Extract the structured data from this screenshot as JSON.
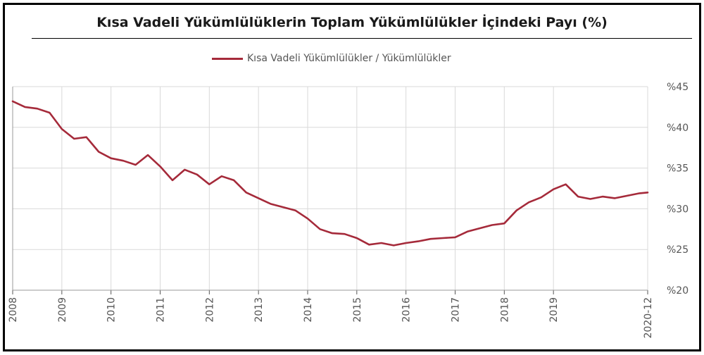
{
  "chart_data": {
    "type": "line",
    "title": "Kısa Vadeli Yükümlülüklerin Toplam Yükümlülükler İçindeki Payı (%)",
    "xlabel": "",
    "ylabel": "",
    "x_tick_labels": [
      "2008",
      "2009",
      "2010",
      "2011",
      "2012",
      "2013",
      "2014",
      "2015",
      "2016",
      "2017",
      "2018",
      "2019",
      "2020-12"
    ],
    "y_tick_labels": [
      "%20",
      "%25",
      "%30",
      "%35",
      "%40",
      "%45"
    ],
    "ylim": [
      20,
      45
    ],
    "xlim": [
      "2008-01",
      "2020-12"
    ],
    "grid": true,
    "legend_position": "top",
    "series": [
      {
        "name": "Kısa Vadeli Yükümlülükler / Yükümlülükler",
        "color": "#a52a3a",
        "x": [
          "2008-01",
          "2008-04",
          "2008-07",
          "2008-10",
          "2009-01",
          "2009-04",
          "2009-07",
          "2009-10",
          "2010-01",
          "2010-04",
          "2010-07",
          "2010-10",
          "2011-01",
          "2011-04",
          "2011-07",
          "2011-10",
          "2012-01",
          "2012-04",
          "2012-07",
          "2012-10",
          "2013-01",
          "2013-04",
          "2013-07",
          "2013-10",
          "2014-01",
          "2014-04",
          "2014-07",
          "2014-10",
          "2015-01",
          "2015-04",
          "2015-07",
          "2015-10",
          "2016-01",
          "2016-04",
          "2016-07",
          "2016-10",
          "2017-01",
          "2017-04",
          "2017-07",
          "2017-10",
          "2018-01",
          "2018-04",
          "2018-07",
          "2018-10",
          "2019-01",
          "2019-04",
          "2019-07",
          "2019-10",
          "2020-01",
          "2020-04",
          "2020-07",
          "2020-10",
          "2020-12"
        ],
        "values": [
          43.2,
          42.5,
          42.3,
          41.8,
          39.8,
          38.6,
          38.8,
          37.0,
          36.2,
          35.9,
          35.4,
          36.6,
          35.2,
          33.5,
          34.8,
          34.2,
          33.0,
          34.0,
          33.5,
          32.0,
          31.3,
          30.6,
          30.2,
          29.8,
          28.8,
          27.5,
          27.0,
          26.9,
          26.4,
          25.6,
          25.8,
          25.5,
          25.8,
          26.0,
          26.3,
          26.4,
          26.5,
          27.2,
          27.6,
          28.0,
          28.2,
          29.8,
          30.8,
          31.4,
          32.4,
          33.0,
          31.5,
          31.2,
          31.5,
          31.3,
          31.6,
          31.9,
          32.0
        ]
      }
    ]
  }
}
